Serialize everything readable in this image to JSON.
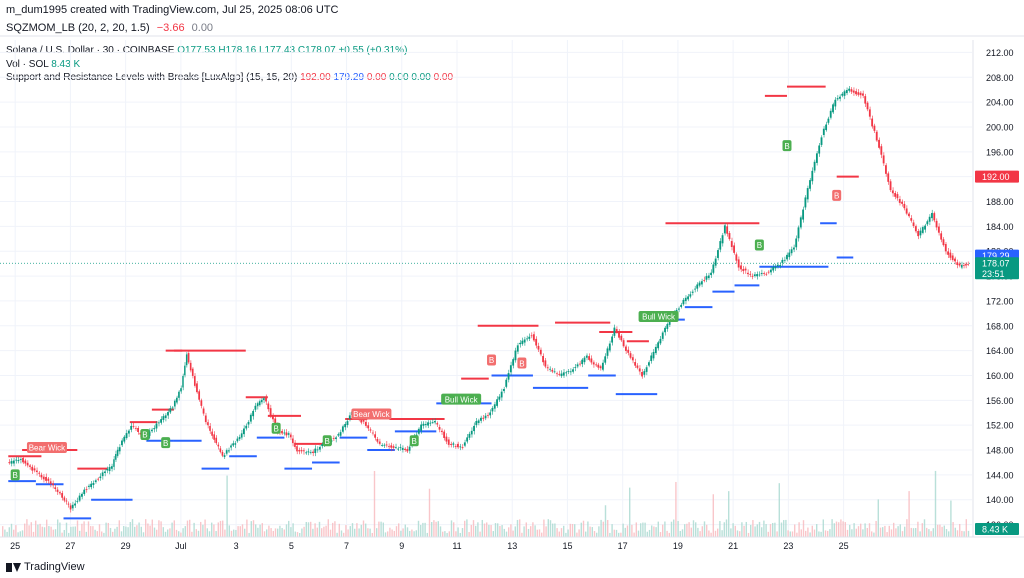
{
  "header": {
    "credit": "m_dum1995 created with TradingView.com, Jul 25, 2025 08:06 UTC"
  },
  "indicator_panel": {
    "title": "SQZMOM_LB (20, 2, 20, 1.5)",
    "value1": "−3.66",
    "value2": "0.00"
  },
  "legend": {
    "symbol": "Solana / U.S. Dollar · 30 · COINBASE",
    "o": "O177.53",
    "h": "H178.16",
    "l": "L177.43",
    "c": "C178.07",
    "chg": "+0.55 (+0.31%)",
    "vol_label": "Vol · SOL",
    "vol_value": "8.43 K",
    "sr_label": "Support and Resistance Levels with Breaks [LuxAlgo] (15, 15, 20)",
    "sr_v1": "192.00",
    "sr_v2": "179.29",
    "sr_v3": "0.00",
    "sr_v4": "0.00",
    "sr_v5": "0.00",
    "sr_v6": "0.00"
  },
  "price_tags": {
    "resistance": "192.00",
    "support": "179.29",
    "last": "178.07",
    "countdown": "23:51",
    "volume": "8.43 K"
  },
  "colors": {
    "up": "#089981",
    "down": "#f23645",
    "resistance": "#f23645",
    "support": "#2962ff",
    "buy_label": "#4caf50",
    "sell_label": "#f26e6e"
  },
  "footer": {
    "brand": "TradingView"
  },
  "chart_data": {
    "type": "line",
    "symbol": "SOLUSD",
    "timeframe": "30",
    "x_tick_labels": [
      "25",
      "27",
      "29",
      "Jul",
      "3",
      "5",
      "7",
      "9",
      "11",
      "13",
      "15",
      "17",
      "19",
      "21",
      "23",
      "25"
    ],
    "y_tick_labels": [
      "212.00",
      "208.00",
      "204.00",
      "200.00",
      "196.00",
      "192.00",
      "188.00",
      "184.00",
      "180.00",
      "176.00",
      "172.00",
      "168.00",
      "164.00",
      "160.00",
      "156.00",
      "152.00",
      "148.00",
      "144.00",
      "140.00",
      "136.00"
    ],
    "ylim": [
      134,
      214
    ],
    "x_days": [
      -0.3,
      30.8
    ],
    "price_path": [
      [
        0,
        145.8
      ],
      [
        0.5,
        146.5
      ],
      [
        1,
        144.5
      ],
      [
        1.5,
        143.0
      ],
      [
        2,
        140.5
      ],
      [
        2.3,
        138.5
      ],
      [
        2.8,
        141.5
      ],
      [
        3.3,
        143.5
      ],
      [
        3.8,
        145.5
      ],
      [
        4,
        148.0
      ],
      [
        4.5,
        152.0
      ],
      [
        5,
        150.0
      ],
      [
        5.5,
        152.5
      ],
      [
        6,
        155.0
      ],
      [
        6.3,
        158.0
      ],
      [
        6.5,
        163.5
      ],
      [
        6.8,
        158.5
      ],
      [
        7.2,
        152.5
      ],
      [
        7.8,
        147.0
      ],
      [
        8.5,
        150.5
      ],
      [
        9,
        155.0
      ],
      [
        9.3,
        156.5
      ],
      [
        9.8,
        151.0
      ],
      [
        10.2,
        150.5
      ],
      [
        10.5,
        148.0
      ],
      [
        11,
        147.5
      ],
      [
        11.5,
        149.0
      ],
      [
        12,
        150.5
      ],
      [
        12.5,
        154.0
      ],
      [
        13,
        152.0
      ],
      [
        13.5,
        149.0
      ],
      [
        14,
        148.5
      ],
      [
        14.5,
        148.0
      ],
      [
        15,
        152.0
      ],
      [
        15.5,
        152.5
      ],
      [
        16,
        149.0
      ],
      [
        16.5,
        148.5
      ],
      [
        17,
        152.5
      ],
      [
        17.5,
        154.0
      ],
      [
        18,
        158.0
      ],
      [
        18.5,
        165.0
      ],
      [
        19,
        166.5
      ],
      [
        19.5,
        161.5
      ],
      [
        20,
        160.0
      ],
      [
        20.5,
        161.0
      ],
      [
        21,
        163.0
      ],
      [
        21.5,
        161.0
      ],
      [
        22,
        167.5
      ],
      [
        22.5,
        163.5
      ],
      [
        23,
        160.0
      ],
      [
        23.5,
        164.5
      ],
      [
        24,
        169.0
      ],
      [
        24.5,
        172.0
      ],
      [
        25,
        174.5
      ],
      [
        25.5,
        176.5
      ],
      [
        26,
        184.0
      ],
      [
        26.5,
        177.5
      ],
      [
        27,
        176.0
      ],
      [
        27.5,
        176.5
      ],
      [
        28,
        178.0
      ],
      [
        28.5,
        180.5
      ],
      [
        29,
        190.0
      ],
      [
        29.5,
        198.5
      ],
      [
        30,
        204.5
      ],
      [
        30.5,
        206.0
      ],
      [
        31,
        205.0
      ],
      [
        31.5,
        198.0
      ],
      [
        32,
        190.0
      ],
      [
        32.5,
        187.0
      ],
      [
        33,
        182.5
      ],
      [
        33.5,
        186.0
      ],
      [
        34,
        180.0
      ],
      [
        34.5,
        177.5
      ],
      [
        34.8,
        178.07
      ]
    ],
    "resistance_levels": [
      {
        "x0": 0.0,
        "x1": 1.2,
        "y": 147.0
      },
      {
        "x0": 0.5,
        "x1": 2.5,
        "y": 148.0
      },
      {
        "x0": 2.5,
        "x1": 3.6,
        "y": 145.0
      },
      {
        "x0": 4.4,
        "x1": 5.4,
        "y": 152.5
      },
      {
        "x0": 5.2,
        "x1": 6.0,
        "y": 154.5
      },
      {
        "x0": 5.7,
        "x1": 6.3,
        "y": 164.0
      },
      {
        "x0": 6.0,
        "x1": 8.6,
        "y": 164.0
      },
      {
        "x0": 8.6,
        "x1": 9.4,
        "y": 156.5
      },
      {
        "x0": 9.4,
        "x1": 10.6,
        "y": 153.5
      },
      {
        "x0": 10.4,
        "x1": 11.6,
        "y": 149.0
      },
      {
        "x0": 12.2,
        "x1": 13.0,
        "y": 153.0
      },
      {
        "x0": 13.8,
        "x1": 15.4,
        "y": 153.0
      },
      {
        "x0": 14.8,
        "x1": 15.8,
        "y": 153.0
      },
      {
        "x0": 16.4,
        "x1": 17.4,
        "y": 159.5
      },
      {
        "x0": 17.0,
        "x1": 19.2,
        "y": 168.0
      },
      {
        "x0": 19.8,
        "x1": 21.8,
        "y": 168.5
      },
      {
        "x0": 21.4,
        "x1": 22.6,
        "y": 167.0
      },
      {
        "x0": 22.4,
        "x1": 23.2,
        "y": 165.5
      },
      {
        "x0": 23.8,
        "x1": 27.2,
        "y": 184.5
      },
      {
        "x0": 27.4,
        "x1": 28.2,
        "y": 205.0
      },
      {
        "x0": 28.2,
        "x1": 29.6,
        "y": 206.5
      },
      {
        "x0": 30.0,
        "x1": 30.8,
        "y": 192.0
      }
    ],
    "support_levels": [
      {
        "x0": 0.0,
        "x1": 1.0,
        "y": 143.0
      },
      {
        "x0": 1.0,
        "x1": 2.0,
        "y": 142.5
      },
      {
        "x0": 2.0,
        "x1": 3.0,
        "y": 137.0
      },
      {
        "x0": 3.0,
        "x1": 4.5,
        "y": 140.0
      },
      {
        "x0": 5.0,
        "x1": 6.0,
        "y": 149.5
      },
      {
        "x0": 6.0,
        "x1": 7.0,
        "y": 149.5
      },
      {
        "x0": 7.0,
        "x1": 8.0,
        "y": 145.0
      },
      {
        "x0": 8.0,
        "x1": 9.0,
        "y": 147.0
      },
      {
        "x0": 9.0,
        "x1": 10.0,
        "y": 150.0
      },
      {
        "x0": 10.0,
        "x1": 11.0,
        "y": 145.0
      },
      {
        "x0": 11.0,
        "x1": 12.0,
        "y": 146.0
      },
      {
        "x0": 12.0,
        "x1": 13.0,
        "y": 150.0
      },
      {
        "x0": 13.0,
        "x1": 14.0,
        "y": 148.0
      },
      {
        "x0": 14.0,
        "x1": 15.5,
        "y": 151.0
      },
      {
        "x0": 15.5,
        "x1": 17.5,
        "y": 155.5
      },
      {
        "x0": 17.5,
        "x1": 19.0,
        "y": 160.0
      },
      {
        "x0": 19.0,
        "x1": 21.0,
        "y": 158.0
      },
      {
        "x0": 21.0,
        "x1": 22.0,
        "y": 160.0
      },
      {
        "x0": 22.0,
        "x1": 23.5,
        "y": 157.0
      },
      {
        "x0": 23.5,
        "x1": 24.5,
        "y": 169.0
      },
      {
        "x0": 24.5,
        "x1": 25.5,
        "y": 171.0
      },
      {
        "x0": 25.5,
        "x1": 26.3,
        "y": 173.5
      },
      {
        "x0": 26.3,
        "x1": 27.2,
        "y": 174.5
      },
      {
        "x0": 27.2,
        "x1": 29.7,
        "y": 177.5
      },
      {
        "x0": 29.4,
        "x1": 30.0,
        "y": 184.5
      },
      {
        "x0": 30.0,
        "x1": 30.6,
        "y": 179.0
      }
    ],
    "markers": [
      {
        "type": "B",
        "x": 0.25,
        "y": 144.0
      },
      {
        "type": "Bear Wick",
        "x": 1.4,
        "y": 148.4
      },
      {
        "type": "B",
        "x": 4.95,
        "y": 150.5
      },
      {
        "type": "B",
        "x": 5.7,
        "y": 149.2
      },
      {
        "type": "B",
        "x": 9.7,
        "y": 151.5
      },
      {
        "type": "B",
        "x": 11.55,
        "y": 149.5
      },
      {
        "type": "Bear Wick",
        "x": 13.15,
        "y": 153.8
      },
      {
        "type": "B",
        "x": 14.7,
        "y": 149.5
      },
      {
        "type": "Bull Wick",
        "x": 16.4,
        "y": 156.2
      },
      {
        "type": "B",
        "x": 17.5,
        "y": 162.5
      },
      {
        "type": "B",
        "x": 18.6,
        "y": 162.0
      },
      {
        "type": "Bull Wick",
        "x": 23.55,
        "y": 169.5
      },
      {
        "type": "B",
        "x": 27.2,
        "y": 181.0
      },
      {
        "type": "B",
        "x": 28.2,
        "y": 197.0
      },
      {
        "type": "B",
        "x": 30.0,
        "y": 189.0
      }
    ]
  }
}
